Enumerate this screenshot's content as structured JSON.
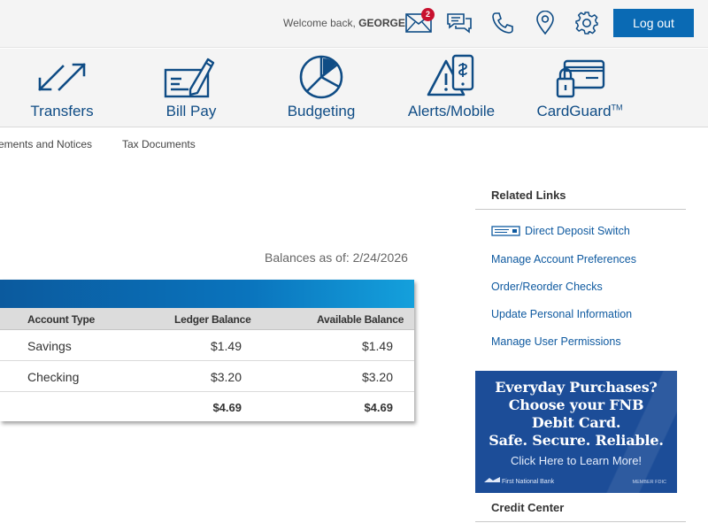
{
  "header": {
    "welcome_prefix": "Welcome back, ",
    "user_name": "GEORGE",
    "messages_badge": "2",
    "logout_label": "Log out",
    "icons": [
      "mail-icon",
      "chat-icon",
      "phone-icon",
      "location-icon",
      "gear-icon"
    ]
  },
  "features": [
    {
      "label": "Transfers",
      "icon": "transfer-arrows-icon"
    },
    {
      "label": "Bill Pay",
      "icon": "check-pen-icon"
    },
    {
      "label": "Budgeting",
      "icon": "pie-chart-icon"
    },
    {
      "label": "Alerts/Mobile",
      "icon": "alert-mobile-icon"
    },
    {
      "label": "CardGuard",
      "trademark": "TM",
      "icon": "card-lock-icon"
    }
  ],
  "subnav": [
    "ements and Notices",
    "Tax Documents"
  ],
  "balances": {
    "as_of": "Balances as of: 2/24/2026",
    "columns": [
      "Account Type",
      "Ledger Balance",
      "Available Balance"
    ],
    "rows": [
      {
        "type": "Savings",
        "ledger": "$1.49",
        "available": "$1.49"
      },
      {
        "type": "Checking",
        "ledger": "$3.20",
        "available": "$3.20"
      }
    ],
    "total": {
      "ledger": "$4.69",
      "available": "$4.69"
    }
  },
  "related": {
    "title": "Related Links",
    "links": [
      "Direct Deposit Switch",
      "Manage Account Preferences",
      "Order/Reorder Checks",
      "Update Personal Information",
      "Manage User Permissions"
    ]
  },
  "ad": {
    "lines": [
      "Everyday Purchases?",
      "Choose your FNB",
      "Debit Card.",
      "Safe. Secure. Reliable."
    ],
    "cta": "Click Here to Learn More!",
    "bank": "First National Bank",
    "fdic": "MEMBER FDIC",
    "background": "#1c4d98"
  },
  "credit_center": {
    "title": "Credit Center"
  },
  "colors": {
    "brand": "#0f4c85",
    "button": "#0a6ab4",
    "link": "#0f5aa0",
    "badge": "#c8102e"
  }
}
